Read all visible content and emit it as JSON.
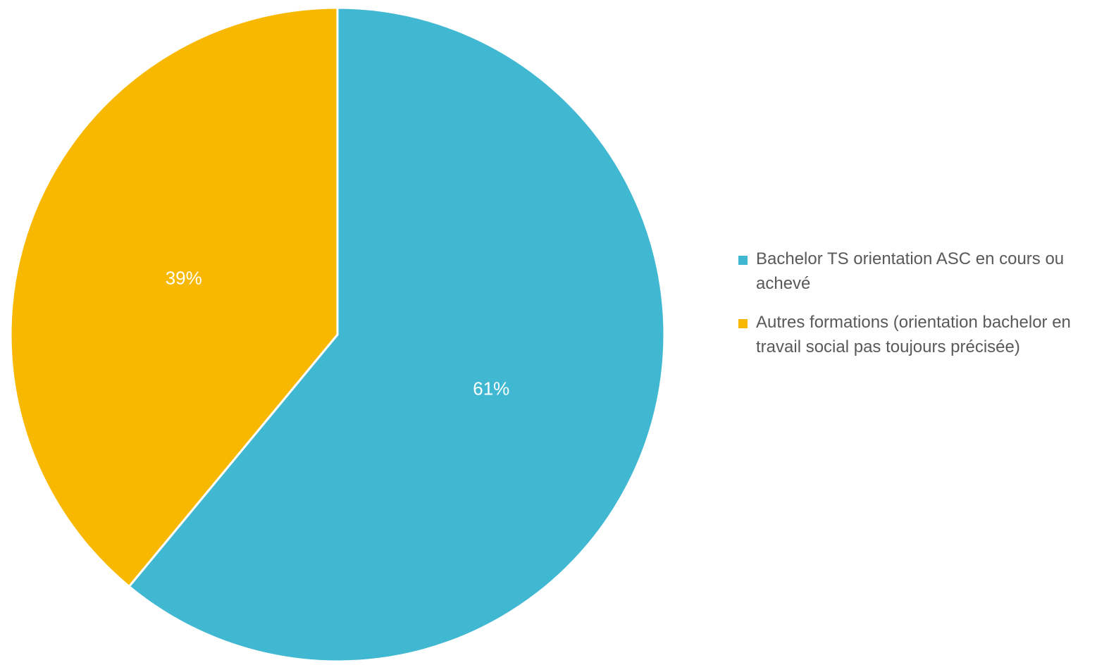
{
  "chart_data": {
    "type": "pie",
    "categories": [
      "Bachelor TS orientation ASC en cours ou achevé",
      "Autres formations (orientation bachelor en travail social pas toujours précisée)"
    ],
    "values": [
      61,
      39
    ],
    "data_labels": [
      "61%",
      "39%"
    ],
    "colors": [
      "#41b8d2",
      "#f9b800"
    ],
    "legend_position": "right",
    "start_angle_deg": 0,
    "direction": "clockwise"
  }
}
